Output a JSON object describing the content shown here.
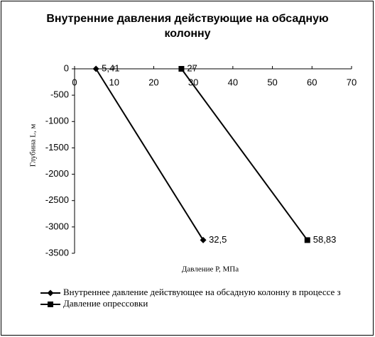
{
  "chart_data": {
    "type": "scatter",
    "title": "Внутренние давления действующие на обсадную колонну",
    "x_label": "Давление P, МПа",
    "y_label": "Глубина L, м",
    "xlim": [
      0,
      70
    ],
    "xticks": [
      0,
      10,
      20,
      30,
      40,
      50,
      60,
      70
    ],
    "ylim": [
      -3500,
      0
    ],
    "yticks": [
      0,
      -500,
      -1000,
      -1500,
      -2000,
      -2500,
      -3000,
      -3500
    ],
    "grid": false,
    "legend": "bottom",
    "series": [
      {
        "name": "Внутреннее давление действующее на обсадную колонну в процессе з",
        "color": "#000000",
        "marker": "diamond",
        "x": [
          5.41,
          32.5
        ],
        "values": [
          0,
          -3250
        ],
        "value_labels": [
          "5,41",
          "32,5"
        ]
      },
      {
        "name": "Давление опрессовки",
        "color": "#000000",
        "marker": "square",
        "x": [
          27,
          58.83
        ],
        "values": [
          0,
          -3250
        ],
        "value_labels": [
          "27",
          "58,83"
        ]
      }
    ]
  }
}
